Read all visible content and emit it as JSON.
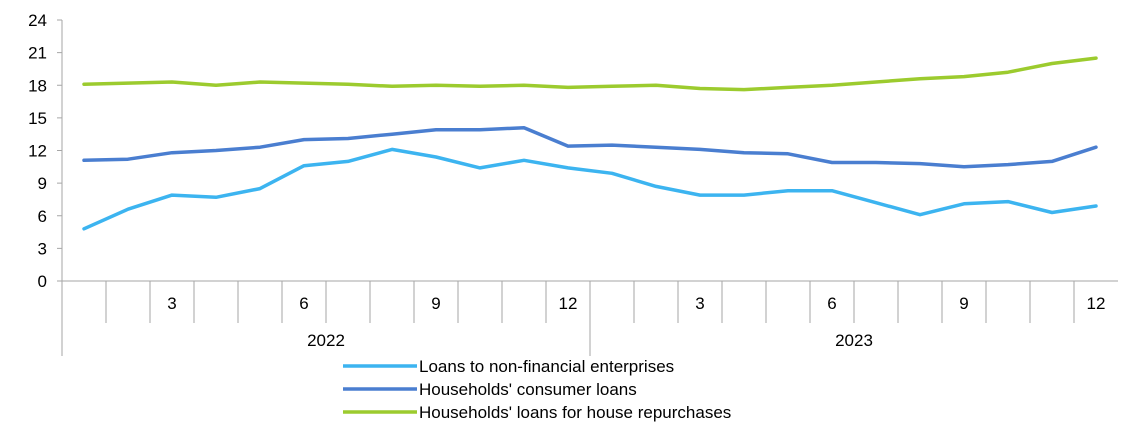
{
  "chart_data": {
    "type": "line",
    "title": "",
    "xlabel": "",
    "ylabel": "",
    "ylim": [
      0,
      24
    ],
    "yticks": [
      0,
      3,
      6,
      9,
      12,
      15,
      18,
      21,
      24
    ],
    "grid": false,
    "legend_position": "bottom",
    "x_month_labels": [
      "",
      "",
      "3",
      "",
      "",
      "6",
      "",
      "",
      "9",
      "",
      "",
      "12",
      "",
      "",
      "3",
      "",
      "",
      "6",
      "",
      "",
      "9",
      "",
      "",
      "12"
    ],
    "x_year_labels": [
      "2022",
      "2023"
    ],
    "series": [
      {
        "name": "Loans to non-financial enterprises",
        "color": "#3cb4f0",
        "values": [
          4.8,
          6.6,
          7.9,
          7.7,
          8.5,
          10.6,
          11.0,
          12.1,
          11.4,
          10.4,
          11.1,
          10.4,
          9.9,
          8.7,
          7.9,
          7.9,
          8.3,
          8.3,
          7.2,
          6.1,
          7.1,
          7.3,
          6.3,
          6.9
        ]
      },
      {
        "name": "Households' consumer loans",
        "color": "#4a7ed0",
        "values": [
          11.1,
          11.2,
          11.8,
          12.0,
          12.3,
          13.0,
          13.1,
          13.5,
          13.9,
          13.9,
          14.1,
          12.4,
          12.5,
          12.3,
          12.1,
          11.8,
          11.7,
          10.9,
          10.9,
          10.8,
          10.5,
          10.7,
          11.0,
          12.3
        ]
      },
      {
        "name": "Households' loans for house repurchases",
        "color": "#9ccb2e",
        "values": [
          18.1,
          18.2,
          18.3,
          18.0,
          18.3,
          18.2,
          18.1,
          17.9,
          18.0,
          17.9,
          18.0,
          17.8,
          17.9,
          18.0,
          17.7,
          17.6,
          17.8,
          18.0,
          18.3,
          18.6,
          18.8,
          19.2,
          20.0,
          20.5
        ]
      }
    ]
  }
}
